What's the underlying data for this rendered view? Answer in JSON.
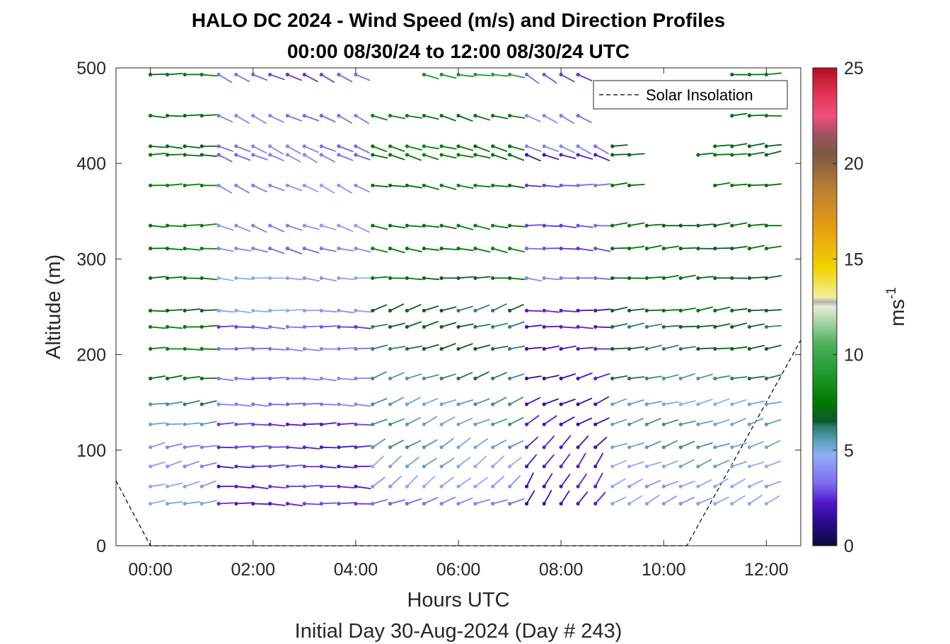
{
  "chart_data": {
    "type": "wind-barb-profile",
    "title": "HALO DC 2024 - Wind Speed (m/s) and Direction Profiles",
    "subtitle": "00:00 08/30/24 to 12:00 08/30/24  UTC",
    "xlabel": "Hours UTC",
    "ylabel": "Altitude (m)",
    "footer": "Initial Day 30-Aug-2024 (Day # 243)",
    "x_ticks": [
      "00:00",
      "02:00",
      "04:00",
      "06:00",
      "08:00",
      "10:00",
      "12:00"
    ],
    "y_ticks": [
      "0",
      "100",
      "200",
      "300",
      "400",
      "500"
    ],
    "xlim_hours": [
      -0.67,
      12.67
    ],
    "ylim": [
      0,
      500
    ],
    "colorbar": {
      "label": "ms",
      "label_exponent": "-1",
      "ticks": [
        "0",
        "5",
        "10",
        "15",
        "20",
        "25"
      ],
      "range": [
        0,
        25
      ]
    },
    "legend": {
      "entries": [
        "Solar Insolation"
      ],
      "placement": "top-right"
    },
    "solar_insolation": {
      "x_hours": [
        -0.67,
        0.0,
        10.45,
        12.67
      ],
      "y": [
        68,
        0,
        0,
        215
      ]
    },
    "altitudes": [
      44,
      62,
      83,
      103,
      127,
      148,
      175,
      206,
      229,
      246,
      280,
      311,
      335,
      377,
      409,
      418,
      450,
      493
    ],
    "hours": [
      0.0,
      0.33,
      0.67,
      1.0,
      1.33,
      1.67,
      2.0,
      2.33,
      2.67,
      3.0,
      3.33,
      3.67,
      4.0,
      4.33,
      4.67,
      5.0,
      5.33,
      5.67,
      6.0,
      6.33,
      6.67,
      7.0,
      7.33,
      7.67,
      8.0,
      8.33,
      8.67,
      9.0,
      9.33,
      9.67,
      10.0,
      10.33,
      10.67,
      11.0,
      11.33,
      11.67,
      12.0
    ],
    "segments": [
      {
        "t0": 0.0,
        "t1": 1.0,
        "speed": [
          4.8,
          4.2,
          4.0,
          4.0,
          5.5,
          6.0,
          7.0,
          7.5,
          7.5,
          7.0,
          7.5,
          7.5,
          7.5,
          7.5,
          7.0,
          7.0,
          7.5,
          7.5
        ],
        "dir": [
          258,
          255,
          255,
          258,
          262,
          262,
          265,
          268,
          270,
          270,
          270,
          270,
          270,
          270,
          270,
          272,
          272,
          272
        ]
      },
      {
        "t0": 1.33,
        "t1": 4.0,
        "speed": [
          2.5,
          2.5,
          2.5,
          2.5,
          2.5,
          3.5,
          3.5,
          3.5,
          3.0,
          4.5,
          4.5,
          3.5,
          4.0,
          4.0,
          3.5,
          3.5,
          3.5,
          3.0
        ],
        "dir": [
          272,
          272,
          270,
          270,
          270,
          272,
          272,
          272,
          272,
          272,
          275,
          285,
          290,
          295,
          295,
          295,
          295,
          295
        ]
      },
      {
        "t0": 4.0,
        "t1": 7.0,
        "speed": [
          3.5,
          4.5,
          5.0,
          5.5,
          5.5,
          5.5,
          6.0,
          6.5,
          6.5,
          6.5,
          7.0,
          7.5,
          7.5,
          7.5,
          7.5,
          7.5,
          7.5,
          9.0
        ],
        "dir": [
          250,
          230,
          232,
          238,
          245,
          248,
          250,
          255,
          255,
          250,
          270,
          280,
          280,
          280,
          285,
          285,
          285,
          280
        ]
      },
      {
        "t0": 7.33,
        "t1": 8.67,
        "speed": [
          2.0,
          2.0,
          2.0,
          2.0,
          2.0,
          2.0,
          2.0,
          2.0,
          2.0,
          2.0,
          3.5,
          3.0,
          3.0,
          3.0,
          2.0,
          3.5,
          3.5,
          3.0
        ],
        "dir": [
          215,
          210,
          215,
          225,
          240,
          245,
          255,
          265,
          270,
          270,
          275,
          275,
          272,
          270,
          290,
          295,
          295,
          300
        ]
      },
      {
        "t0": 9.0,
        "t1": 12.0,
        "speed": [
          4.5,
          4.5,
          5.0,
          5.5,
          5.5,
          5.0,
          6.0,
          6.5,
          6.5,
          7.0,
          7.0,
          7.0,
          7.0,
          7.0,
          7.0,
          7.0,
          7.5,
          7.5
        ],
        "dir": [
          242,
          245,
          248,
          250,
          252,
          255,
          258,
          262,
          262,
          262,
          265,
          265,
          265,
          262,
          262,
          265,
          265,
          265
        ]
      }
    ],
    "gaps": [
      {
        "alt": 377,
        "from": 9.67,
        "to": 10.67
      },
      {
        "alt": 409,
        "from": 9.67,
        "to": 10.33
      },
      {
        "alt": 418,
        "from": 9.33,
        "to": 10.67
      },
      {
        "alt": 450,
        "from": 8.67,
        "to": 11.0
      },
      {
        "alt": 493,
        "from": 8.67,
        "to": 11.0
      },
      {
        "alt": 493,
        "from": 4.33,
        "to": 5.0
      }
    ]
  }
}
